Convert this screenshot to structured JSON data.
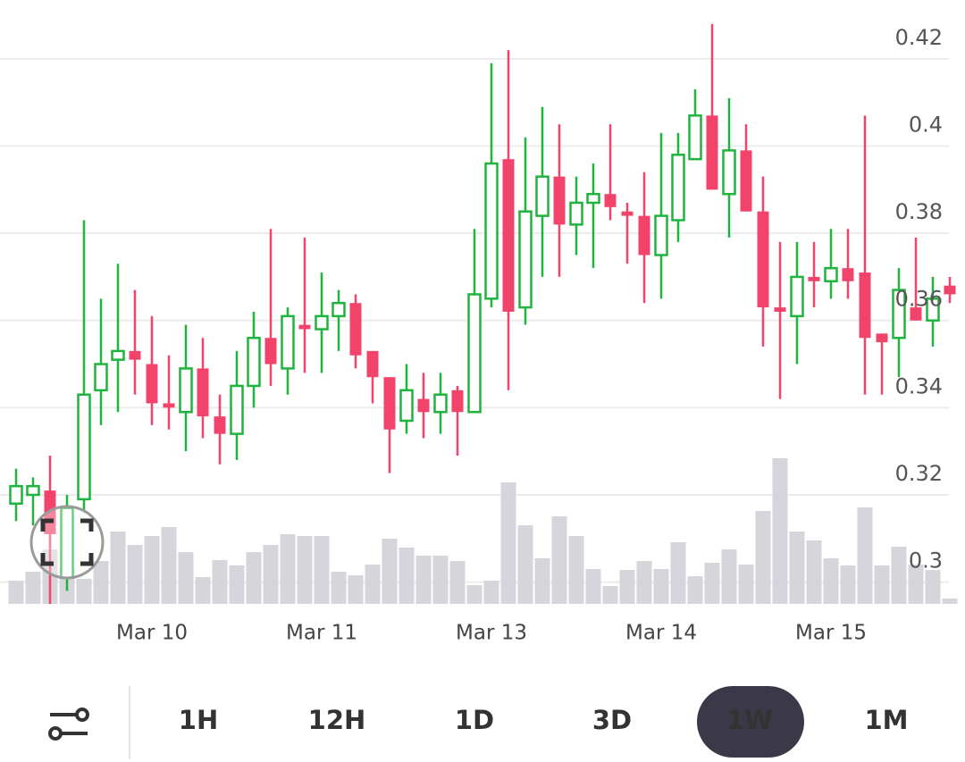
{
  "chart_data": {
    "type": "candlestick",
    "categories": [
      null,
      null,
      null,
      null,
      null,
      null,
      null,
      null,
      "Mar 10",
      null,
      null,
      null,
      null,
      null,
      null,
      null,
      null,
      null,
      "Mar 11",
      null,
      null,
      null,
      null,
      null,
      null,
      null,
      null,
      null,
      "Mar 13",
      null,
      null,
      null,
      null,
      null,
      null,
      null,
      null,
      null,
      "Mar 14",
      null,
      null,
      null,
      null,
      null,
      null,
      null,
      null,
      null,
      "Mar 15",
      null,
      null,
      null,
      null,
      null,
      null,
      null
    ],
    "open": [
      0.318,
      0.32,
      0.321,
      0.301,
      0.319,
      0.344,
      0.351,
      0.353,
      0.35,
      0.341,
      0.339,
      0.349,
      0.338,
      0.334,
      0.345,
      0.356,
      0.349,
      0.359,
      0.358,
      0.361,
      0.364,
      0.353,
      0.347,
      0.337,
      0.342,
      0.339,
      0.344,
      0.339,
      0.365,
      0.397,
      0.363,
      0.384,
      0.393,
      0.382,
      0.387,
      0.389,
      0.385,
      0.384,
      0.375,
      0.383,
      0.397,
      0.407,
      0.389,
      0.399,
      0.385,
      0.363,
      0.361,
      0.37,
      0.369,
      0.372,
      0.371,
      0.357,
      0.356,
      0.363,
      0.36,
      0.368
    ],
    "high": [
      0.326,
      0.324,
      0.329,
      0.32,
      0.383,
      0.365,
      0.373,
      0.367,
      0.361,
      0.352,
      0.359,
      0.356,
      0.343,
      0.353,
      0.362,
      0.381,
      0.363,
      0.379,
      0.371,
      0.367,
      0.366,
      0.353,
      0.347,
      0.35,
      0.348,
      0.348,
      0.345,
      0.381,
      0.419,
      0.422,
      0.402,
      0.409,
      0.405,
      0.393,
      0.396,
      0.405,
      0.387,
      0.394,
      0.403,
      0.403,
      0.413,
      0.428,
      0.411,
      0.405,
      0.393,
      0.378,
      0.378,
      0.378,
      0.381,
      0.381,
      0.407,
      0.357,
      0.372,
      0.379,
      0.37,
      0.37
    ],
    "low": [
      0.314,
      0.313,
      0.295,
      0.298,
      0.316,
      0.336,
      0.339,
      0.343,
      0.336,
      0.335,
      0.33,
      0.333,
      0.327,
      0.328,
      0.34,
      0.345,
      0.343,
      0.348,
      0.348,
      0.353,
      0.349,
      0.341,
      0.325,
      0.334,
      0.333,
      0.334,
      0.329,
      0.339,
      0.363,
      0.344,
      0.359,
      0.37,
      0.37,
      0.375,
      0.372,
      0.383,
      0.373,
      0.364,
      0.365,
      0.378,
      0.397,
      0.39,
      0.379,
      0.385,
      0.354,
      0.342,
      0.35,
      0.363,
      0.365,
      0.365,
      0.343,
      0.343,
      0.347,
      0.36,
      0.354,
      0.364
    ],
    "close": [
      0.322,
      0.322,
      0.311,
      0.317,
      0.343,
      0.35,
      0.353,
      0.351,
      0.341,
      0.34,
      0.349,
      0.338,
      0.334,
      0.345,
      0.356,
      0.35,
      0.361,
      0.358,
      0.361,
      0.364,
      0.352,
      0.347,
      0.335,
      0.344,
      0.339,
      0.343,
      0.339,
      0.366,
      0.396,
      0.362,
      0.385,
      0.393,
      0.382,
      0.387,
      0.389,
      0.386,
      0.384,
      0.375,
      0.384,
      0.398,
      0.407,
      0.39,
      0.399,
      0.385,
      0.363,
      0.362,
      0.37,
      0.369,
      0.372,
      0.369,
      0.356,
      0.355,
      0.367,
      0.36,
      0.365,
      0.366
    ],
    "volume": [
      26,
      36,
      61,
      41,
      28,
      48,
      81,
      66,
      76,
      86,
      58,
      30,
      49,
      43,
      58,
      66,
      78,
      76,
      76,
      36,
      32,
      44,
      73,
      63,
      54,
      54,
      48,
      21,
      26,
      136,
      88,
      51,
      98,
      76,
      39,
      20,
      38,
      48,
      39,
      69,
      31,
      46,
      61,
      44,
      104,
      163,
      81,
      71,
      51,
      43,
      108,
      43,
      64,
      44,
      38,
      6
    ],
    "up_color": "#1fb43e",
    "down_color": "#f2446b",
    "volume_color": "#d6d5db",
    "ylim": [
      0.295,
      0.4335
    ],
    "yticks": [
      0.3,
      0.32,
      0.34,
      0.36,
      0.38,
      0.4,
      0.42
    ],
    "grid": true
  },
  "toolbar": {
    "buttons": [
      "1H",
      "12H",
      "1D",
      "3D",
      "1W",
      "1M"
    ]
  }
}
